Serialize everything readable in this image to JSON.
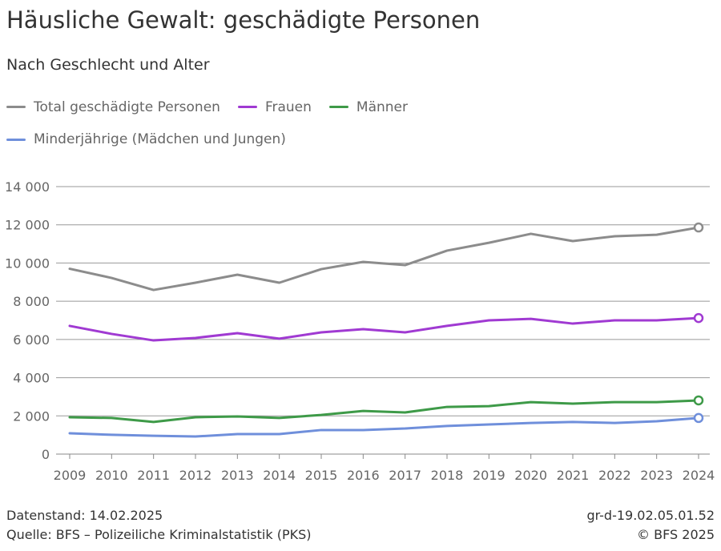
{
  "chart_data": {
    "type": "line",
    "title": "Häusliche Gewalt: geschädigte Personen",
    "subtitle": "Nach Geschlecht und Alter",
    "x": [
      2009,
      2010,
      2011,
      2012,
      2013,
      2014,
      2015,
      2016,
      2017,
      2018,
      2019,
      2020,
      2021,
      2022,
      2023,
      2024
    ],
    "ylim": [
      0,
      14000
    ],
    "yticks": [
      0,
      2000,
      4000,
      6000,
      8000,
      10000,
      12000,
      14000
    ],
    "ytick_labels": [
      "0",
      "2 000",
      "4 000",
      "6 000",
      "8 000",
      "10 000",
      "12 000",
      "14 000"
    ],
    "grid": true,
    "legend_placement": "top",
    "series": [
      {
        "name": "Total geschädigte Personen",
        "color": "#8c8c8c",
        "values": [
          9700,
          9220,
          8590,
          8970,
          9390,
          8970,
          9680,
          10060,
          9890,
          10650,
          11060,
          11530,
          11150,
          11400,
          11480,
          11860
        ]
      },
      {
        "name": "Frauen",
        "color": "#a03ad2",
        "values": [
          6710,
          6290,
          5950,
          6080,
          6330,
          6040,
          6370,
          6540,
          6370,
          6710,
          7000,
          7080,
          6830,
          7000,
          7000,
          7120
        ]
      },
      {
        "name": "Männer",
        "color": "#3e9a48",
        "values": [
          1930,
          1890,
          1680,
          1930,
          1970,
          1890,
          2050,
          2260,
          2180,
          2470,
          2510,
          2720,
          2640,
          2720,
          2720,
          2810
        ]
      },
      {
        "name": "Minderjährige (Mädchen und Jungen)",
        "color": "#6f8fdb",
        "values": [
          1090,
          1010,
          960,
          920,
          1050,
          1050,
          1260,
          1260,
          1340,
          1470,
          1550,
          1630,
          1680,
          1630,
          1720,
          1890
        ]
      }
    ]
  },
  "footer": {
    "datenstand": "Datenstand: 14.02.2025",
    "quelle": "Quelle: BFS – Polizeiliche Kriminalstatistik (PKS)",
    "code": "gr-d-19.02.05.01.52",
    "copyright": "© BFS 2025"
  }
}
